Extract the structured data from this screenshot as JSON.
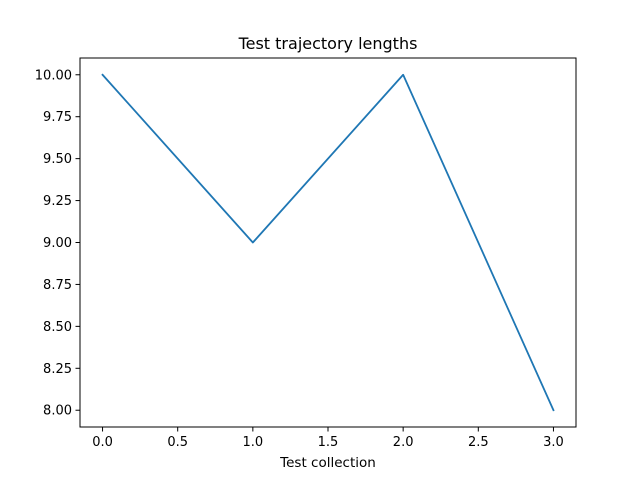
{
  "chart_data": {
    "type": "line",
    "title": "Test trajectory lengths",
    "xlabel": "Test collection",
    "ylabel": "",
    "x": [
      0,
      1,
      2,
      3
    ],
    "series": [
      {
        "values": [
          10,
          9,
          10,
          8
        ],
        "color": "#1f77b4"
      }
    ],
    "xlim": [
      -0.15,
      3.15
    ],
    "ylim": [
      7.9,
      10.1
    ],
    "xticks": [
      "0.0",
      "0.5",
      "1.0",
      "1.5",
      "2.0",
      "2.5",
      "3.0"
    ],
    "yticks": [
      "8.00",
      "8.25",
      "8.50",
      "8.75",
      "9.00",
      "9.25",
      "9.50",
      "9.75",
      "10.00"
    ],
    "grid": false,
    "legend": "none"
  }
}
